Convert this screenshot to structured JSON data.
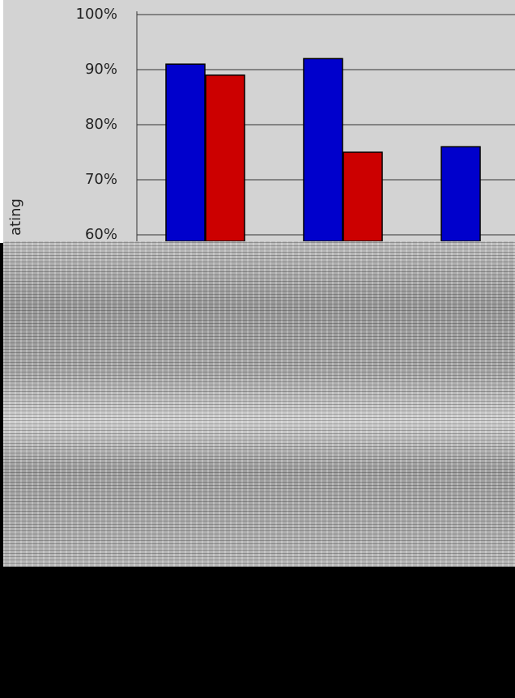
{
  "chart_data": {
    "type": "bar",
    "y_label": "ating",
    "categories": [
      null,
      null,
      null
    ],
    "series": [
      {
        "color": "#0000cc",
        "values": [
          91,
          92,
          76
        ]
      },
      {
        "color": "#cc0000",
        "values": [
          89,
          75,
          null
        ]
      }
    ],
    "ylim": [
      60,
      100
    ],
    "yticks": [
      {
        "value": 60,
        "label": "60%"
      },
      {
        "value": 70,
        "label": "70%"
      },
      {
        "value": 80,
        "label": "80%"
      },
      {
        "value": 90,
        "label": "90%"
      },
      {
        "value": 100,
        "label": "100%"
      }
    ],
    "grid": true
  }
}
